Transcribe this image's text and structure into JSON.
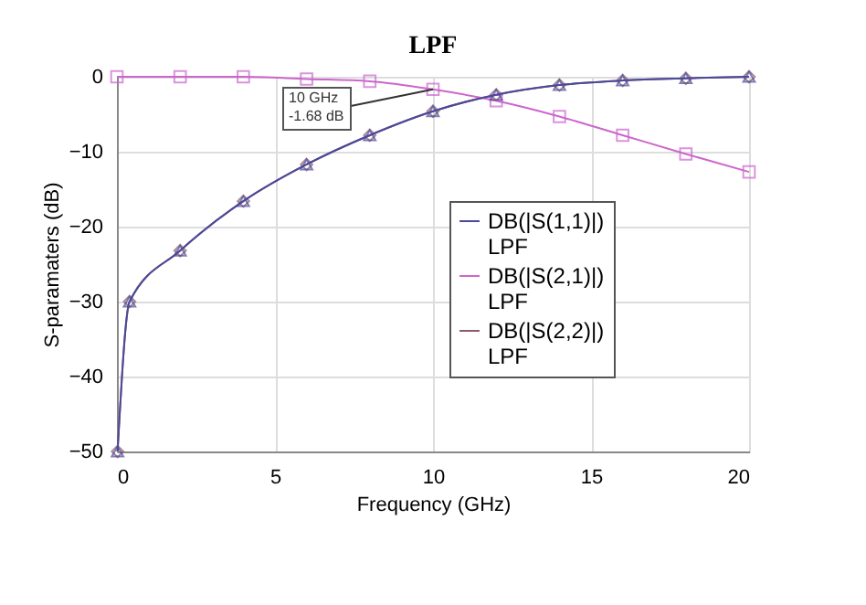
{
  "chart_data": {
    "type": "line",
    "title": "LPF",
    "xlabel": "Frequency (GHz)",
    "ylabel": "S-paramaters (dB)",
    "xlim": [
      0,
      20
    ],
    "xticks": [
      0,
      5,
      10,
      15,
      20
    ],
    "ylim": [
      -50,
      0
    ],
    "yticks": [
      -50,
      -40,
      -30,
      -20,
      -10,
      0
    ],
    "grid": true,
    "legend": "right",
    "series": [
      {
        "name": "DB(|S(1,1)|)\nLPF",
        "color": "#4a4a9c",
        "marker": "triangle",
        "x": [
          0.02,
          0.4,
          2,
          4,
          6,
          8,
          10,
          12,
          14,
          16,
          18,
          20
        ],
        "values": [
          -50,
          -30,
          -23.2,
          -16.6,
          -11.7,
          -7.8,
          -4.6,
          -2.4,
          -1.1,
          -0.5,
          -0.2,
          0
        ]
      },
      {
        "name": "DB(|S(2,1)|)\nLPF",
        "color": "#cc66cc",
        "marker": "square",
        "x": [
          0,
          2,
          4,
          6,
          8,
          10,
          12,
          14,
          16,
          18,
          20
        ],
        "values": [
          0,
          0,
          0,
          -0.3,
          -0.6,
          -1.68,
          -3.2,
          -5.3,
          -7.8,
          -10.3,
          -12.7
        ]
      },
      {
        "name": "DB(|S(2,2)|)\nLPF",
        "color": "#8b5a6b",
        "marker": "diamond",
        "x": [
          0.02,
          0.4,
          2,
          4,
          6,
          8,
          10,
          12,
          14,
          16,
          18,
          20
        ],
        "values": [
          -50,
          -30,
          -23.2,
          -16.6,
          -11.7,
          -7.8,
          -4.6,
          -2.4,
          -1.1,
          -0.5,
          -0.2,
          0
        ]
      }
    ],
    "annotations": [
      {
        "text": "10 GHz\n-1.68 dB",
        "x": 10,
        "y": -1.68
      }
    ]
  }
}
